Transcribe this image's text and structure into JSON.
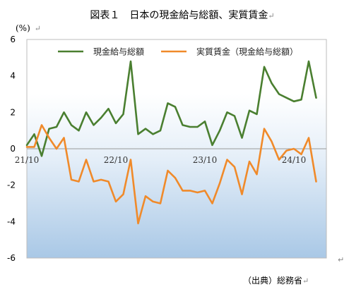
{
  "chart_title": "図表１　日本の現金給与総額、実質賃金",
  "return_mark": "↵",
  "source_note": "（出典）総務省",
  "chart_data": {
    "type": "line",
    "ylabel": "(%)",
    "ylim": [
      -6,
      6
    ],
    "yticks": [
      6,
      4,
      2,
      0,
      -2,
      -4,
      -6
    ],
    "x_tick_labels": [
      {
        "label": "21/10",
        "index": 0
      },
      {
        "label": "22/10",
        "index": 12
      },
      {
        "label": "23/10",
        "index": 24
      },
      {
        "label": "24/10",
        "index": 36
      }
    ],
    "legend_position": "top",
    "grid": false,
    "background": "blue gradient",
    "series": [
      {
        "name": "現金給与総額",
        "color": "#4a7f30",
        "values": [
          0.2,
          0.8,
          -0.4,
          1.1,
          1.2,
          2.0,
          1.3,
          1.0,
          2.0,
          1.3,
          1.7,
          2.2,
          1.4,
          1.9,
          4.8,
          0.8,
          1.1,
          0.8,
          1.0,
          2.5,
          2.3,
          1.3,
          1.2,
          1.2,
          1.5,
          0.2,
          1.0,
          2.0,
          1.8,
          0.6,
          2.1,
          1.9,
          4.5,
          3.6,
          3.0,
          2.8,
          2.6,
          2.7,
          4.8,
          2.8
        ]
      },
      {
        "name": "実質賃金（現金給与総額）",
        "color": "#f08a2a",
        "values": [
          0.1,
          0.1,
          1.3,
          0.6,
          0.0,
          0.6,
          -1.7,
          -1.8,
          -0.6,
          -1.8,
          -1.7,
          -1.8,
          -2.9,
          -2.5,
          -0.6,
          -4.1,
          -2.6,
          -2.9,
          -3.0,
          -1.2,
          -1.6,
          -2.3,
          -2.3,
          -2.4,
          -2.3,
          -3.0,
          -1.9,
          -0.6,
          -1.0,
          -2.5,
          -0.7,
          -1.4,
          1.1,
          0.4,
          -0.6,
          -0.1,
          0.0,
          -0.3,
          0.6,
          -1.8
        ]
      }
    ]
  }
}
